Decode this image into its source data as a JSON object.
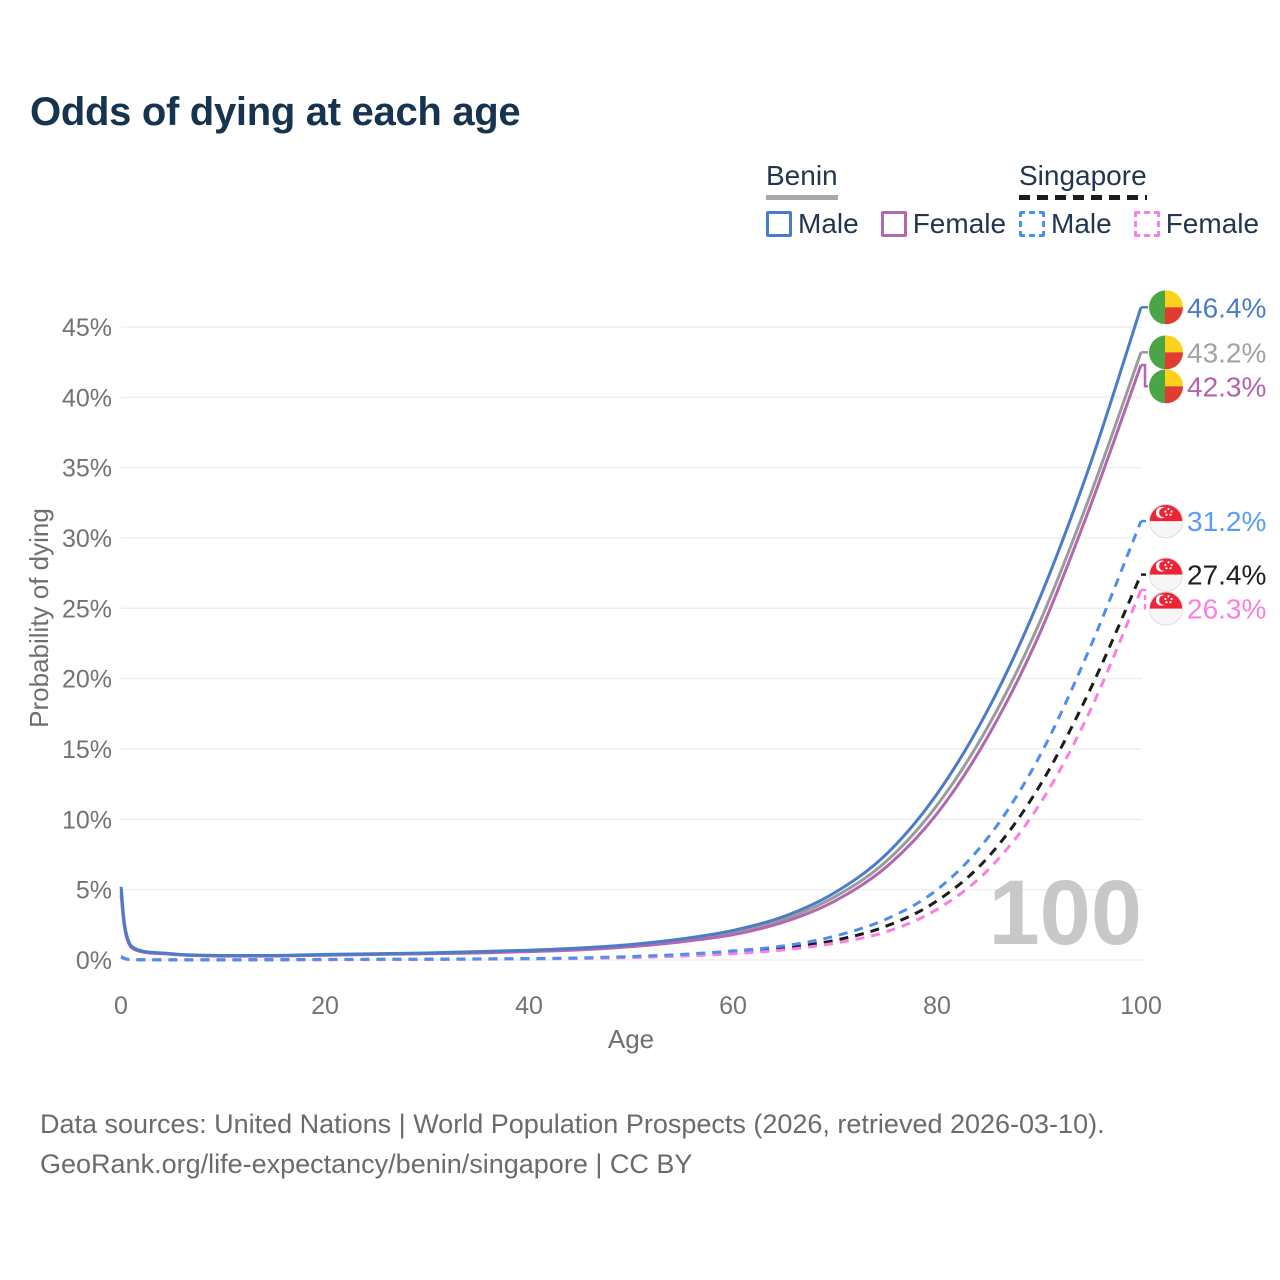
{
  "title": "Odds of dying at each age",
  "legend": {
    "groups": [
      {
        "label": "Benin",
        "underline_style": "solid",
        "underline_color": "#a9a9a9",
        "items": [
          {
            "label": "Male",
            "color": "#4a7cc7",
            "dashed": false
          },
          {
            "label": "Female",
            "color": "#b168ae",
            "dashed": false
          }
        ]
      },
      {
        "label": "Singapore",
        "underline_style": "dashed",
        "underline_color": "#1c1c1c",
        "items": [
          {
            "label": "Male",
            "color": "#4d8ef0",
            "dashed": true
          },
          {
            "label": "Female",
            "color": "#fb7fe0",
            "dashed": true
          }
        ]
      }
    ]
  },
  "watermark": "100",
  "flags": {
    "benin": {
      "green": "#4aa546",
      "yellow": "#fcd21a",
      "red": "#e23b30"
    },
    "singapore": {
      "red": "#ee2436",
      "white": "#f6f6f7"
    }
  },
  "chart_data": {
    "type": "line",
    "title": "Odds of dying at each age",
    "xlabel": "Age",
    "ylabel": "Probability of dying",
    "xlim": [
      0,
      100
    ],
    "ylim_percent": [
      0,
      47
    ],
    "x_ticks": [
      0,
      20,
      40,
      60,
      80,
      100
    ],
    "y_ticks_percent": [
      0,
      5,
      10,
      15,
      20,
      25,
      30,
      35,
      40,
      45
    ],
    "grid": "horizontal",
    "legend_position": "top-right",
    "x": [
      0,
      1,
      5,
      10,
      15,
      20,
      25,
      30,
      35,
      40,
      45,
      50,
      55,
      60,
      65,
      70,
      75,
      80,
      85,
      90,
      95,
      100
    ],
    "series": [
      {
        "id": "benin-male",
        "name": "Benin Male",
        "country": "Benin",
        "style": "solid",
        "color": "#4a7cc7",
        "label_color": "#4a7dc9",
        "end_label": "46.4%",
        "values_percent": [
          5.2,
          1.0,
          0.45,
          0.32,
          0.32,
          0.4,
          0.45,
          0.5,
          0.6,
          0.7,
          0.85,
          1.1,
          1.5,
          2.1,
          3.1,
          4.8,
          7.5,
          11.8,
          17.8,
          25.6,
          35.2,
          46.4
        ]
      },
      {
        "id": "benin-both",
        "name": "Benin (both sexes)",
        "country": "Benin",
        "style": "solid",
        "color": "#9b9b9b",
        "label_color": "#a3a3a3",
        "end_label": "43.2%",
        "values_percent": [
          4.9,
          0.95,
          0.42,
          0.3,
          0.3,
          0.37,
          0.42,
          0.47,
          0.55,
          0.65,
          0.8,
          1.0,
          1.4,
          1.95,
          2.9,
          4.5,
          7.0,
          11.0,
          16.6,
          23.9,
          33.0,
          43.2
        ]
      },
      {
        "id": "benin-female",
        "name": "Benin Female",
        "country": "Benin",
        "style": "solid",
        "color": "#b168ae",
        "label_color": "#b263ae",
        "end_label": "42.3%",
        "values_percent": [
          4.6,
          0.9,
          0.4,
          0.28,
          0.28,
          0.34,
          0.39,
          0.44,
          0.5,
          0.6,
          0.72,
          0.95,
          1.3,
          1.8,
          2.7,
          4.2,
          6.6,
          10.4,
          15.9,
          23.1,
          32.2,
          42.3
        ]
      },
      {
        "id": "singapore-male",
        "name": "Singapore Male",
        "country": "Singapore",
        "style": "dashed",
        "color": "#4d8ef0",
        "label_color": "#5b9bf8",
        "end_label": "31.2%",
        "values_percent": [
          0.25,
          0.03,
          0.01,
          0.01,
          0.02,
          0.04,
          0.05,
          0.06,
          0.08,
          0.1,
          0.15,
          0.25,
          0.4,
          0.65,
          1.0,
          1.7,
          2.9,
          5.0,
          8.7,
          14.4,
          22.2,
          31.2
        ]
      },
      {
        "id": "singapore-both",
        "name": "Singapore (both sexes)",
        "country": "Singapore",
        "style": "dashed",
        "color": "#1c1c1c",
        "label_color": "#1f1f1f",
        "end_label": "27.4%",
        "values_percent": [
          0.22,
          0.02,
          0.01,
          0.01,
          0.02,
          0.03,
          0.04,
          0.05,
          0.07,
          0.09,
          0.13,
          0.21,
          0.33,
          0.53,
          0.85,
          1.4,
          2.4,
          4.2,
          7.3,
          12.3,
          19.2,
          27.4
        ]
      },
      {
        "id": "singapore-female",
        "name": "Singapore Female",
        "country": "Singapore",
        "style": "dashed",
        "color": "#fb7fe0",
        "label_color": "#fb7fe0",
        "end_label": "26.3%",
        "values_percent": [
          0.2,
          0.02,
          0.01,
          0.01,
          0.01,
          0.02,
          0.03,
          0.04,
          0.06,
          0.08,
          0.11,
          0.18,
          0.28,
          0.45,
          0.72,
          1.2,
          2.0,
          3.6,
          6.4,
          11.0,
          17.7,
          26.3
        ]
      }
    ]
  },
  "footer": {
    "line1": "Data sources: United Nations | World Population Prospects (2026, retrieved 2026-03-10).",
    "line2": "GeoRank.org/life-expectancy/benin/singapore | CC BY"
  }
}
